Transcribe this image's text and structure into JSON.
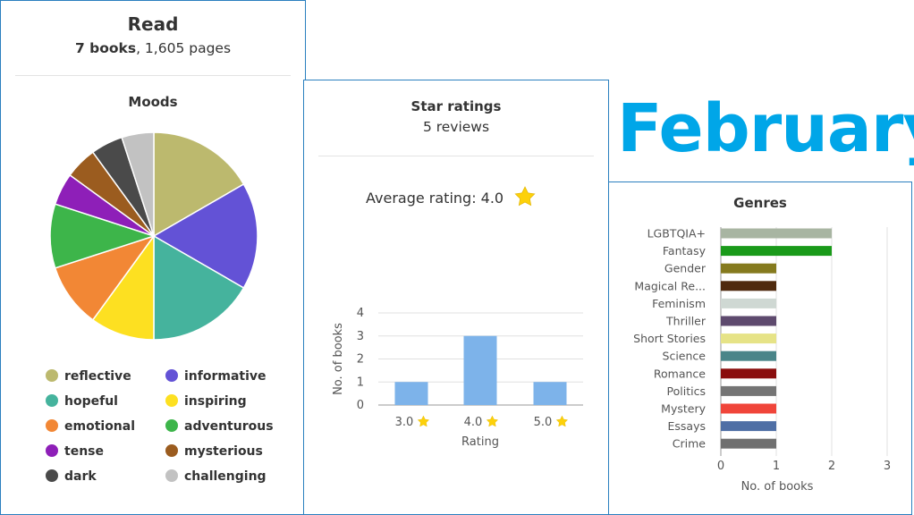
{
  "read": {
    "title": "Read",
    "books": "7 books",
    "pages": ", 1,605 pages"
  },
  "stars_panel": {
    "title": "Star ratings",
    "subtitle": "5 reviews",
    "average_label": "Average rating: 4.0",
    "star_icon": "star-icon"
  },
  "month": "February",
  "chart_data": [
    {
      "type": "pie",
      "title": "Moods",
      "slices": [
        {
          "name": "reflective",
          "value": 1,
          "color": "#bcb96e"
        },
        {
          "name": "informative",
          "value": 1,
          "color": "#6352d6"
        },
        {
          "name": "hopeful",
          "value": 1,
          "color": "#45b39d"
        },
        {
          "name": "inspiring",
          "value": 0.6,
          "color": "#fde021"
        },
        {
          "name": "emotional",
          "value": 0.6,
          "color": "#f28735"
        },
        {
          "name": "adventurous",
          "value": 0.6,
          "color": "#3db54a"
        },
        {
          "name": "tense",
          "value": 0.3,
          "color": "#8e1fb8"
        },
        {
          "name": "mysterious",
          "value": 0.3,
          "color": "#9b5c1f"
        },
        {
          "name": "dark",
          "value": 0.3,
          "color": "#4a4a4a"
        },
        {
          "name": "challenging",
          "value": 0.3,
          "color": "#c2c2c2"
        }
      ]
    },
    {
      "type": "bar",
      "xlabel": "Rating",
      "ylabel": "No. of books",
      "categories": [
        "3.0",
        "4.0",
        "5.0"
      ],
      "values": [
        1,
        3,
        1
      ],
      "ylim": [
        0,
        4
      ],
      "yticks": [
        "0",
        "1",
        "2",
        "3",
        "4"
      ],
      "color": "#7db3ea"
    },
    {
      "type": "bar",
      "orientation": "horizontal",
      "title": "Genres",
      "xlabel": "No. of books",
      "xlim": [
        0,
        3
      ],
      "xticks": [
        "0",
        "1",
        "2",
        "3"
      ],
      "categories": [
        "LGBTQIA+",
        "Fantasy",
        "Gender",
        "Magical Re...",
        "Feminism",
        "Thriller",
        "Short Stories",
        "Science",
        "Romance",
        "Politics",
        "Mystery",
        "Essays",
        "Crime"
      ],
      "values": [
        2,
        2,
        1,
        1,
        1,
        1,
        1,
        1,
        1,
        1,
        1,
        1,
        1
      ],
      "colors": [
        "#a8b5a2",
        "#1a9a1a",
        "#857a1e",
        "#4f2a0e",
        "#cfd8d3",
        "#5e4a6e",
        "#e6e387",
        "#4a8589",
        "#8a0d0d",
        "#757575",
        "#f0453a",
        "#4f6fa5",
        "#707070"
      ]
    }
  ]
}
